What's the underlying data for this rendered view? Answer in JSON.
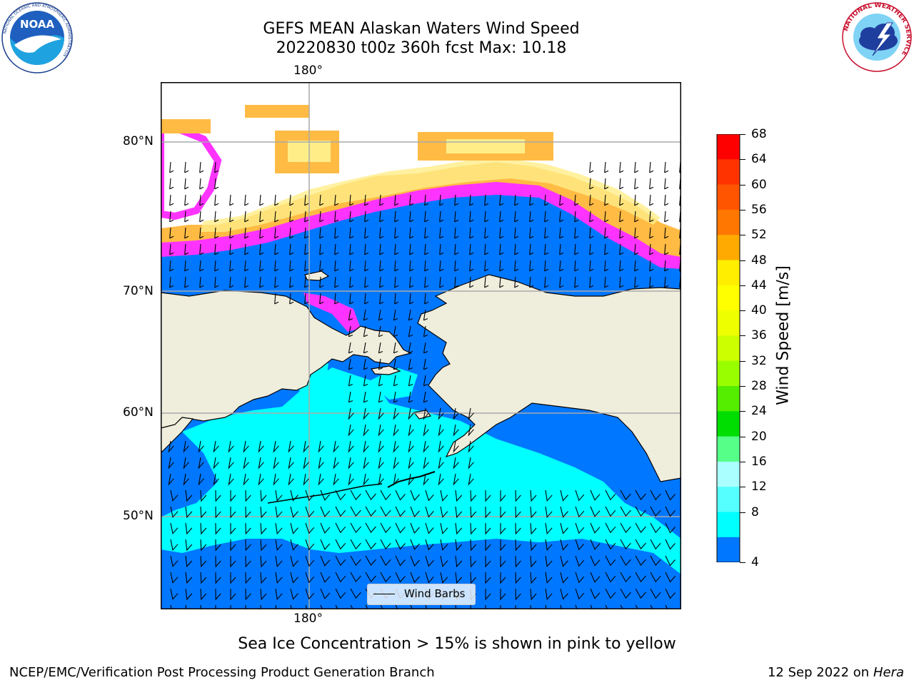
{
  "title": {
    "line1": "GEFS MEAN Alaskan Waters Wind Speed",
    "line2": "20220830 t00z 360h fcst   Max: 10.18"
  },
  "axes": {
    "lon_top": "180°",
    "lon_bottom": "180°",
    "lat_labels": [
      "80°N",
      "70°N",
      "60°N",
      "50°N"
    ]
  },
  "legend": {
    "label": "Wind Barbs"
  },
  "colorbar": {
    "label": "Wind Speed [m/s]",
    "ticks": [
      "68",
      "64",
      "60",
      "56",
      "52",
      "48",
      "44",
      "40",
      "36",
      "32",
      "28",
      "24",
      "20",
      "16",
      "12",
      "8",
      "4"
    ],
    "colors": [
      "#ff0000",
      "#ff3300",
      "#ff5500",
      "#ff7700",
      "#ff9900",
      "#ffbb00",
      "#ffee00",
      "#ffff00",
      "#eeff00",
      "#ccff00",
      "#aaff00",
      "#55ee00",
      "#00dd00",
      "#33dd66",
      "#55ff88",
      "#aaffff",
      "#55ffff",
      "#00ffff",
      "#0077ff"
    ],
    "extend_color": "#0000ff"
  },
  "note": "Sea Ice Concentration > 15% is shown in pink to yellow",
  "footer_left": "NCEP/EMC/Verification Post Processing Product Generation Branch",
  "footer_date": "12 Sep 2022 on",
  "footer_machine": "Hera",
  "logos": {
    "noaa_text": "NOAA",
    "noaa_ring": "NATIONAL OCEANIC AND ATMOSPHERIC ADMINISTRATION",
    "nws_ring": "NATIONAL WEATHER SERVICE"
  },
  "colors": {
    "ocean": "#0077ff",
    "stronger_wind": "#00ffff",
    "land": "#efeddc",
    "ice_pink": "#ff33ff",
    "ice_orange": "#ffbb44",
    "ice_yellow": "#ffee88"
  }
}
